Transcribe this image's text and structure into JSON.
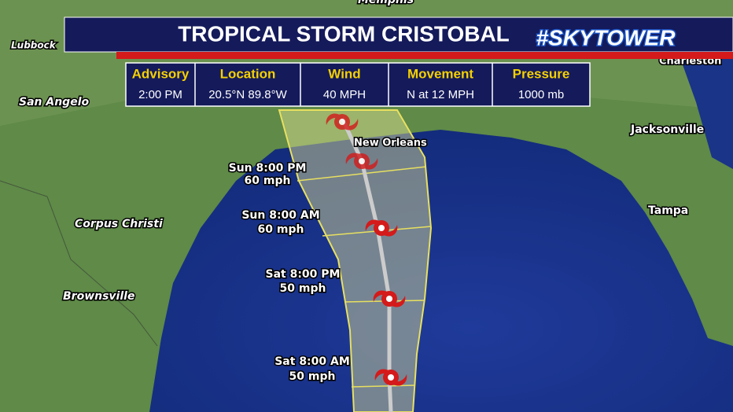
{
  "header": {
    "title": "TROPICAL STORM CRISTOBAL",
    "brand": "#SKYTOWER"
  },
  "info_table": {
    "headers": [
      "Advisory",
      "Location",
      "Wind",
      "Movement",
      "Pressure"
    ],
    "values": [
      "2:00 PM",
      "20.5°N  89.8°W",
      "40 MPH",
      "N at 12 MPH",
      "1000 mb"
    ]
  },
  "cities": [
    "Memphis",
    "Lubbock",
    "San Angelo",
    "Corpus Christi",
    "Brownsville",
    "New Orleans",
    "Jacksonville",
    "Tampa",
    "Charleston"
  ],
  "forecast_points": [
    {
      "time": "Sun 8:00 PM",
      "wind": "60 mph"
    },
    {
      "time": "Sun 8:00 AM",
      "wind": "60 mph"
    },
    {
      "time": "Sat 8:00 PM",
      "wind": "50 mph"
    },
    {
      "time": "Sat 8:00 AM",
      "wind": "50 mph"
    }
  ]
}
